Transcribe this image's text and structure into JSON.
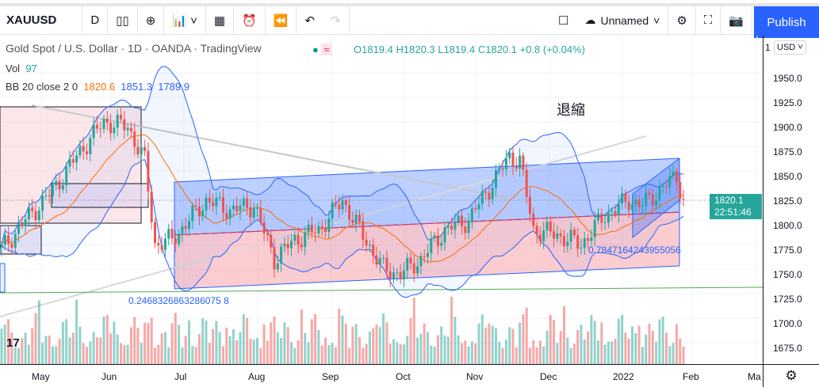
{
  "toolbar": {
    "symbol": "XAUUSD",
    "interval": "D",
    "layout_name": "Unnamed",
    "publish": "Publish"
  },
  "legend": {
    "title": "Gold Spot / U.S. Dollar · 1D · OANDA · TradingView",
    "ohlc": "O1819.4 H1820.3 L1819.4 C1820.1 +0.8 (+0.04%)",
    "vol_label": "Vol",
    "vol_value": "97",
    "bb_label": "BB 20 close 2 0",
    "bb_basis": "1820.6",
    "bb_upper": "1851.3",
    "bb_lower": "1789.9"
  },
  "annotations": {
    "fib_left": "0.2468326863286075 8",
    "fib_right": "0.7847164243955056",
    "note": "退縮"
  },
  "price_axis": {
    "currency": "USD",
    "ticks": [
      "1950.0",
      "1925.0",
      "1900.0",
      "1875.0",
      "1850.0",
      "1825.0",
      "1800.0",
      "1775.0",
      "1750.0",
      "1725.0",
      "1700.0",
      "1675.0"
    ],
    "last_price": "1820.1",
    "countdown": "22:51:46",
    "prefix": "1"
  },
  "time_axis": {
    "labels": [
      "May",
      "Jun",
      "Jul",
      "Aug",
      "Sep",
      "Oct",
      "Nov",
      "Dec",
      "2022",
      "Feb",
      "Ma"
    ]
  },
  "colors": {
    "up": "#26a69a",
    "down": "#ef5350",
    "bb": "#2962ff",
    "basis": "#ff6d00",
    "accent": "#2962ff"
  },
  "chart_data": {
    "type": "candlestick",
    "symbol": "XAUUSD",
    "timeframe": "1D",
    "ylim": [
      1660,
      1960
    ],
    "close_path": [
      [
        0,
        1770
      ],
      [
        7,
        1800
      ],
      [
        15,
        1830
      ],
      [
        23,
        1870
      ],
      [
        30,
        1900
      ],
      [
        37,
        1895
      ],
      [
        42,
        1860
      ],
      [
        45,
        1775
      ],
      [
        50,
        1780
      ],
      [
        55,
        1800
      ],
      [
        60,
        1820
      ],
      [
        67,
        1810
      ],
      [
        74,
        1815
      ],
      [
        80,
        1760
      ],
      [
        86,
        1780
      ],
      [
        93,
        1790
      ],
      [
        100,
        1820
      ],
      [
        105,
        1790
      ],
      [
        112,
        1750
      ],
      [
        117,
        1745
      ],
      [
        123,
        1760
      ],
      [
        130,
        1790
      ],
      [
        137,
        1800
      ],
      [
        149,
        1865
      ],
      [
        152,
        1860
      ],
      [
        156,
        1790
      ],
      [
        163,
        1785
      ],
      [
        170,
        1775
      ],
      [
        177,
        1805
      ],
      [
        184,
        1820
      ],
      [
        188,
        1815
      ],
      [
        193,
        1830
      ],
      [
        198,
        1845
      ],
      [
        200,
        1820
      ]
    ]
  }
}
